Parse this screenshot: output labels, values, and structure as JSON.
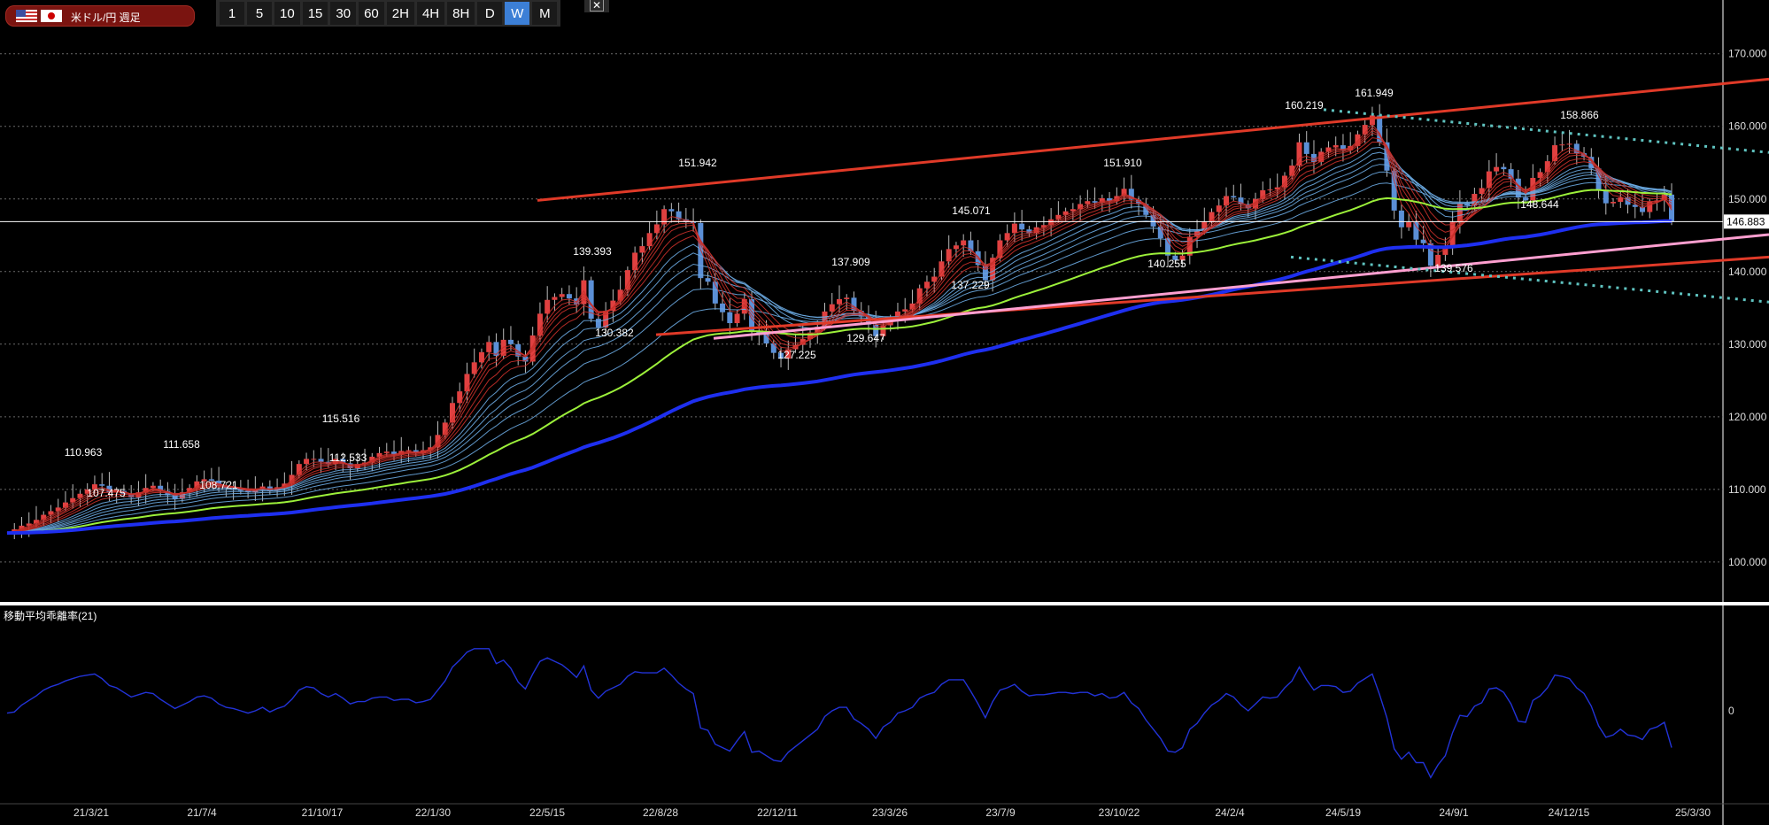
{
  "header": {
    "pair_label": "米ドル/円 週足",
    "timeframes": [
      "1",
      "5",
      "10",
      "15",
      "30",
      "60",
      "2H",
      "4H",
      "8H",
      "D",
      "W",
      "M"
    ],
    "active_timeframe": "W",
    "close_glyph": "✕"
  },
  "colors": {
    "background": "#000000",
    "up_candle": "#e04040",
    "down_candle": "#5b8fd6",
    "trendline": "#e03a28",
    "support_line": "#ff9fd0",
    "dotted_line": "#5fc3c0",
    "ma_long": "#1e2ff0",
    "ma_mid": "#9cf03a",
    "ribbon_fast": "#c8302a",
    "ribbon_slow": "#6aa8e0",
    "indicator": "#2233d8"
  },
  "chart_data": {
    "type": "candlestick",
    "title": "米ドル/円 週足",
    "ylim": [
      94.5,
      173.5
    ],
    "yticks": [
      100,
      110,
      120,
      130,
      140,
      150,
      160,
      170
    ],
    "ytick_labels": [
      "100.000",
      "110.000",
      "120.000",
      "130.000",
      "140.000",
      "150.000",
      "160.000",
      "170.000"
    ],
    "xtick_labels": [
      "21/3/21",
      "21/7/4",
      "21/10/17",
      "22/1/30",
      "22/5/15",
      "22/8/28",
      "22/12/11",
      "23/3/26",
      "23/7/9",
      "23/10/22",
      "24/2/4",
      "24/5/19",
      "24/9/1",
      "24/12/15",
      "25/3/30"
    ],
    "current_price": 146.883,
    "current_price_label": "146.883",
    "close_series_weekly": [
      104,
      104.5,
      105,
      105.3,
      105.8,
      106.5,
      107,
      107.5,
      108.2,
      108.8,
      109.4,
      110,
      110.7,
      110.5,
      109.6,
      109.8,
      109.4,
      108.9,
      109.6,
      110.2,
      110.5,
      109.8,
      109.2,
      108.7,
      109.6,
      110.2,
      111.1,
      111.4,
      111.2,
      110.5,
      110.2,
      110.1,
      109.8,
      109.6,
      109.9,
      110.4,
      109.8,
      110.3,
      110.8,
      112,
      113.5,
      114.2,
      114.2,
      113.8,
      113.5,
      114.2,
      113.6,
      112.9,
      113.5,
      113.7,
      114.5,
      115,
      115.2,
      114.8,
      115.3,
      115.4,
      115,
      115.4,
      115.8,
      117.5,
      119.2,
      121.9,
      123.5,
      125.9,
      127.5,
      128.9,
      130.3,
      128.4,
      130.6,
      130,
      128.3,
      127.6,
      131.2,
      134.2,
      136.1,
      136.5,
      136.9,
      136.3,
      135.5,
      138.8,
      133.5,
      132.3,
      134.6,
      136,
      137.5,
      140.2,
      142.6,
      143.5,
      145.3,
      146.5,
      148.6,
      148.3,
      147.2,
      146.8,
      146.7,
      139.1,
      138.6,
      135.6,
      134.4,
      132.9,
      134.2,
      136.2,
      131.7,
      131.4,
      130.1,
      128.8,
      128,
      129.3,
      129.9,
      130.7,
      131.6,
      132.4,
      134.5,
      135.5,
      136.2,
      136.4,
      134.6,
      133.8,
      132.7,
      131.1,
      132.6,
      133.2,
      134.5,
      134.8,
      135.6,
      137.7,
      138.6,
      139.3,
      141.4,
      143.1,
      143.6,
      144.3,
      142.8,
      140.9,
      138.8,
      141.9,
      144.3,
      145.3,
      146.6,
      145.8,
      145.3,
      146.1,
      146.4,
      147.2,
      147.8,
      148.3,
      148.6,
      149.3,
      149.7,
      149.5,
      150.1,
      149.7,
      150.4,
      151.4,
      149.9,
      149.3,
      147.8,
      146.2,
      144.6,
      142.2,
      141.6,
      142.2,
      144.8,
      145.6,
      146.9,
      148.2,
      149.1,
      150.4,
      150.2,
      149.3,
      148.7,
      150,
      151.2,
      151.3,
      151.6,
      153.2,
      154.6,
      157.8,
      156.2,
      155.1,
      156.5,
      157.1,
      157.4,
      156.7,
      157.3,
      158.9,
      160.2,
      161.5,
      157.8,
      153.9,
      148.4,
      146.1,
      146.8,
      144.4,
      143.9,
      140.8,
      142.3,
      143.5,
      146.8,
      149.3,
      149.1,
      150.7,
      151.5,
      153.8,
      154.4,
      154.1,
      152.8,
      150.2,
      149.8,
      152.9,
      153.7,
      155.2,
      157.4,
      157.5,
      157.6,
      156.3,
      155.8,
      154.2,
      151.3,
      149.4,
      149.6,
      150.2,
      149.2,
      148.9,
      148.2,
      149.6,
      149.8,
      150.6,
      146.9
    ],
    "swing_labels": [
      {
        "text": "110.963",
        "value": 110.963
      },
      {
        "text": "107.475",
        "value": 107.475
      },
      {
        "text": "111.658",
        "value": 111.658
      },
      {
        "text": "108.721",
        "value": 108.721
      },
      {
        "text": "115.516",
        "value": 115.516
      },
      {
        "text": "112.533",
        "value": 112.533
      },
      {
        "text": "139.393",
        "value": 139.393
      },
      {
        "text": "130.382",
        "value": 130.382
      },
      {
        "text": "151.942",
        "value": 151.942
      },
      {
        "text": "127.225",
        "value": 127.225
      },
      {
        "text": "137.909",
        "value": 137.909
      },
      {
        "text": "129.647",
        "value": 129.647
      },
      {
        "text": "145.071",
        "value": 145.071
      },
      {
        "text": "137.229",
        "value": 137.229
      },
      {
        "text": "151.910",
        "value": 151.91
      },
      {
        "text": "140.255",
        "value": 140.255
      },
      {
        "text": "160.219",
        "value": 160.219
      },
      {
        "text": "161.949",
        "value": 161.949
      },
      {
        "text": "139.576",
        "value": 139.576
      },
      {
        "text": "148.644",
        "value": 148.644
      },
      {
        "text": "158.866",
        "value": 158.866
      }
    ],
    "indicator": {
      "title": "移動平均乖離率(21)",
      "zero_label": "0",
      "values": [
        -0.2,
        -0.1,
        0.5,
        0.9,
        1.3,
        1.8,
        2.1,
        2.3,
        2.6,
        2.8,
        3,
        3.1,
        3.2,
        2.8,
        2.2,
        2,
        1.6,
        1.2,
        1.4,
        1.6,
        1.5,
        1,
        0.6,
        0.2,
        0.5,
        0.8,
        1.2,
        1.3,
        1.1,
        0.6,
        0.3,
        0.2,
        0,
        -0.2,
        0,
        0.3,
        -0.1,
        0.2,
        0.4,
        1,
        1.8,
        2.1,
        2,
        1.5,
        1.2,
        1.5,
        1.1,
        0.6,
        0.8,
        0.8,
        1.1,
        1.2,
        1.2,
        0.9,
        1,
        1,
        0.7,
        0.8,
        1,
        1.8,
        2.6,
        3.8,
        4.4,
        5.1,
        5.4,
        5.4,
        5.4,
        4.1,
        4.4,
        3.7,
        2.5,
        1.9,
        3.2,
        4.3,
        4.6,
        4.3,
        4,
        3.5,
        2.9,
        3.9,
        1.8,
        1.1,
        1.7,
        2,
        2.3,
        3,
        3.4,
        3.3,
        3.3,
        3.3,
        3.7,
        3.1,
        2.4,
        1.9,
        1.5,
        -1.5,
        -1.7,
        -2.9,
        -3.2,
        -3.5,
        -2.6,
        -1.8,
        -3.6,
        -3.5,
        -3.9,
        -4.3,
        -4.4,
        -3.6,
        -3.1,
        -2.6,
        -2.1,
        -1.6,
        -0.5,
        0,
        0.3,
        0.3,
        -0.7,
        -1.1,
        -1.6,
        -2.4,
        -1.4,
        -1,
        -0.2,
        0,
        0.3,
        1.1,
        1.4,
        1.6,
        2.3,
        2.7,
        2.7,
        2.7,
        1.7,
        0.6,
        -0.6,
        0.8,
        1.8,
        2,
        2.3,
        1.7,
        1.3,
        1.4,
        1.4,
        1.5,
        1.6,
        1.6,
        1.5,
        1.6,
        1.6,
        1.3,
        1.5,
        1.1,
        1.2,
        1.6,
        0.7,
        0.2,
        -0.8,
        -1.6,
        -2.4,
        -3.5,
        -3.6,
        -3.2,
        -1.6,
        -1.1,
        -0.2,
        0.5,
        0.9,
        1.5,
        1.2,
        0.5,
        0,
        0.6,
        1.2,
        1.1,
        1.2,
        2,
        2.6,
        3.8,
        2.7,
        1.8,
        2.2,
        2.2,
        2.1,
        1.6,
        1.7,
        2.4,
        2.8,
        3.2,
        1.4,
        -0.6,
        -3.3,
        -4.2,
        -3.6,
        -4.5,
        -4.5,
        -5.8,
        -4.7,
        -3.9,
        -1.9,
        -0.4,
        -0.5,
        0.4,
        0.7,
        1.9,
        2,
        1.6,
        0.6,
        -0.9,
        -1,
        0.9,
        1.3,
        2,
        3.1,
        3,
        2.8,
        2,
        1.5,
        0.4,
        -1.3,
        -2.3,
        -2.1,
        -1.6,
        -2.1,
        -2.2,
        -2.5,
        -1.6,
        -1.4,
        -1,
        -3.2
      ]
    }
  }
}
